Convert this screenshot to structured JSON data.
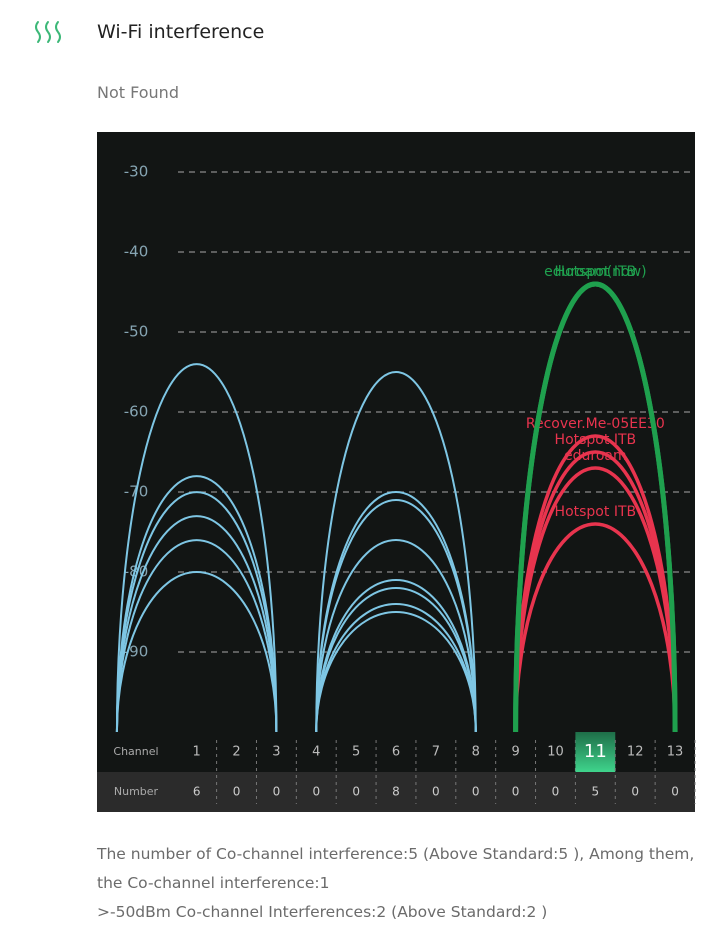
{
  "header": {
    "title": "Wi-Fi interference",
    "status": "Not Found"
  },
  "chart_data": {
    "type": "arc",
    "xlim": [
      -1.5,
      13.5
    ],
    "xticks": [
      1,
      2,
      3,
      4,
      5,
      6,
      7,
      8,
      9,
      10,
      11,
      12,
      13
    ],
    "ylim": [
      -100,
      -25
    ],
    "yticks": [
      -30,
      -40,
      -50,
      -60,
      -70,
      -80,
      -90
    ],
    "grid": true,
    "highlight": 11,
    "channel_label": "Channel",
    "number_label": "Number",
    "counts": [
      6,
      0,
      0,
      0,
      0,
      8,
      0,
      0,
      0,
      0,
      5,
      0,
      0
    ],
    "series": [
      {
        "x": 1,
        "color": "#7ec6e4",
        "values": [
          -54,
          -68,
          -70,
          -73,
          -76,
          -80
        ]
      },
      {
        "x": 6,
        "color": "#7ec6e4",
        "values": [
          -55,
          -70,
          -71,
          -76,
          -81,
          -82,
          -84,
          -85
        ]
      },
      {
        "x": 11,
        "color": "#e8344e",
        "values": [
          -63,
          -65,
          -67,
          -74
        ],
        "labels": [
          "Recover.Me-05EE30",
          "Hotspot ITB",
          "eduroam",
          "Hotspot ITB"
        ]
      },
      {
        "x": 11,
        "color": "#1fa04e",
        "values": [
          -44,
          -44
        ],
        "labels": [
          "eduroam(now)",
          "Hotspot ITB"
        ]
      }
    ]
  },
  "summary": [
    "The number of Co-channel interference:5 (Above Standard:5 ), Among them, the Co-channel interference:1",
    ">-50dBm Co-channel Interferences:2 (Above Standard:2 )"
  ]
}
